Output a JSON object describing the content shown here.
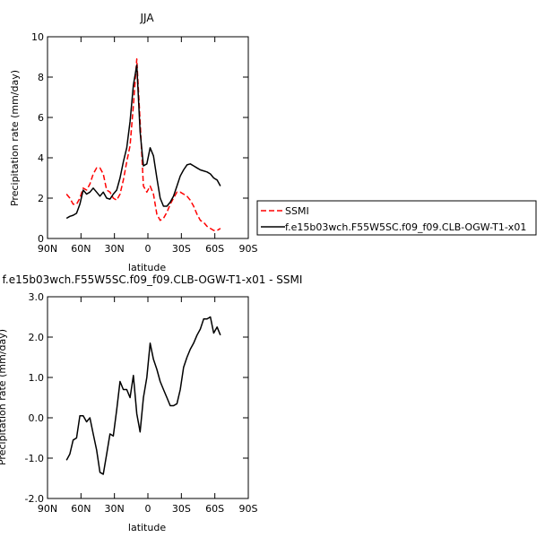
{
  "chart_data": [
    {
      "type": "line",
      "title": "JJA",
      "xlabel": "latitude",
      "ylabel": "Precipitation rate (mm/day)",
      "xlim": [
        90,
        -90
      ],
      "ylim": [
        0,
        10
      ],
      "x_ticks": [
        {
          "value": 90,
          "label": "90N"
        },
        {
          "value": 60,
          "label": "60N"
        },
        {
          "value": 30,
          "label": "30N"
        },
        {
          "value": 0,
          "label": "0"
        },
        {
          "value": -30,
          "label": "30S"
        },
        {
          "value": -60,
          "label": "60S"
        },
        {
          "value": -90,
          "label": "90S"
        }
      ],
      "y_ticks": [
        {
          "value": 0,
          "label": "0"
        },
        {
          "value": 2,
          "label": "2"
        },
        {
          "value": 4,
          "label": "4"
        },
        {
          "value": 6,
          "label": "6"
        },
        {
          "value": 8,
          "label": "8"
        },
        {
          "value": 10,
          "label": "10"
        }
      ],
      "legend_position": "right",
      "series": [
        {
          "name": "SSMI",
          "color": "#ff0000",
          "dash": true,
          "x": [
            73,
            70,
            67,
            64,
            61,
            58,
            55,
            52,
            49,
            46,
            43,
            40,
            37,
            34,
            31,
            28,
            25,
            22,
            19,
            16,
            13,
            10,
            7,
            4,
            1,
            -2,
            -5,
            -8,
            -11,
            -14,
            -17,
            -20,
            -23,
            -26,
            -29,
            -32,
            -35,
            -38,
            -41,
            -44,
            -47,
            -50,
            -53,
            -56,
            -59,
            -62,
            -65
          ],
          "values": [
            2.2,
            2.0,
            1.7,
            1.7,
            2.0,
            2.5,
            2.4,
            2.7,
            3.2,
            3.5,
            3.5,
            3.2,
            2.4,
            2.3,
            2.0,
            1.9,
            2.2,
            2.9,
            3.8,
            4.6,
            6.6,
            8.9,
            5.8,
            2.6,
            2.3,
            2.6,
            2.2,
            1.2,
            0.9,
            1.0,
            1.3,
            1.7,
            2.0,
            2.3,
            2.3,
            2.2,
            2.1,
            1.9,
            1.6,
            1.2,
            0.9,
            0.8,
            0.6,
            0.5,
            0.4,
            0.4,
            0.5
          ]
        },
        {
          "name": "f.e15b03wch.F55W5SC.f09_f09.CLB-OGW-T1-x01",
          "color": "#000000",
          "dash": false,
          "x": [
            73,
            70,
            67,
            64,
            61,
            58,
            55,
            52,
            49,
            46,
            43,
            40,
            37,
            34,
            31,
            28,
            25,
            22,
            19,
            16,
            13,
            10,
            7,
            4,
            1,
            -2,
            -5,
            -8,
            -11,
            -14,
            -17,
            -20,
            -23,
            -26,
            -29,
            -32,
            -35,
            -38,
            -41,
            -44,
            -47,
            -50,
            -53,
            -56,
            -59,
            -62,
            -65
          ],
          "values": [
            1.0,
            1.1,
            1.15,
            1.25,
            1.7,
            2.4,
            2.2,
            2.3,
            2.5,
            2.3,
            2.1,
            2.3,
            2.0,
            1.95,
            2.2,
            2.4,
            3.0,
            3.8,
            4.5,
            5.8,
            7.6,
            8.6,
            5.3,
            3.6,
            3.7,
            4.5,
            4.1,
            3.0,
            2.0,
            1.6,
            1.6,
            1.8,
            2.1,
            2.6,
            3.1,
            3.4,
            3.65,
            3.7,
            3.6,
            3.5,
            3.4,
            3.35,
            3.3,
            3.2,
            3.0,
            2.9,
            2.6
          ]
        }
      ]
    },
    {
      "type": "line",
      "title": "f.e15b03wch.F55W5SC.f09_f09.CLB-OGW-T1-x01 - SSMI",
      "xlabel": "latitude",
      "ylabel": "Precipitation rate (mm/day)",
      "xlim": [
        90,
        -90
      ],
      "ylim": [
        -2,
        3
      ],
      "x_ticks": [
        {
          "value": 90,
          "label": "90N"
        },
        {
          "value": 60,
          "label": "60N"
        },
        {
          "value": 30,
          "label": "30N"
        },
        {
          "value": 0,
          "label": "0"
        },
        {
          "value": -30,
          "label": "30S"
        },
        {
          "value": -60,
          "label": "60S"
        },
        {
          "value": -90,
          "label": "90S"
        }
      ],
      "y_ticks": [
        {
          "value": -2,
          "label": "-2.0"
        },
        {
          "value": -1,
          "label": "-1.0"
        },
        {
          "value": 0,
          "label": "0.0"
        },
        {
          "value": 1,
          "label": "1.0"
        },
        {
          "value": 2,
          "label": "2.0"
        },
        {
          "value": 3,
          "label": "3.0"
        }
      ],
      "series": [
        {
          "name": "",
          "color": "#000000",
          "dash": false,
          "x": [
            73,
            70,
            67,
            64,
            61,
            58,
            55,
            52,
            49,
            46,
            43,
            40,
            37,
            34,
            31,
            28,
            25,
            22,
            19,
            16,
            13,
            10,
            7,
            4,
            1,
            -2,
            -5,
            -8,
            -11,
            -14,
            -17,
            -20,
            -23,
            -26,
            -29,
            -32,
            -35,
            -38,
            -41,
            -44,
            -47,
            -50,
            -53,
            -56,
            -59,
            -62,
            -65
          ],
          "values": [
            -1.05,
            -0.9,
            -0.55,
            -0.5,
            0.05,
            0.05,
            -0.1,
            0.0,
            -0.4,
            -0.8,
            -1.35,
            -1.4,
            -0.9,
            -0.4,
            -0.45,
            0.2,
            0.9,
            0.7,
            0.7,
            0.5,
            1.05,
            0.1,
            -0.35,
            0.5,
            1.0,
            1.85,
            1.45,
            1.2,
            0.9,
            0.7,
            0.5,
            0.3,
            0.3,
            0.35,
            0.7,
            1.25,
            1.5,
            1.7,
            1.85,
            2.05,
            2.2,
            2.45,
            2.45,
            2.5,
            2.1,
            2.25,
            2.05
          ]
        }
      ]
    }
  ]
}
